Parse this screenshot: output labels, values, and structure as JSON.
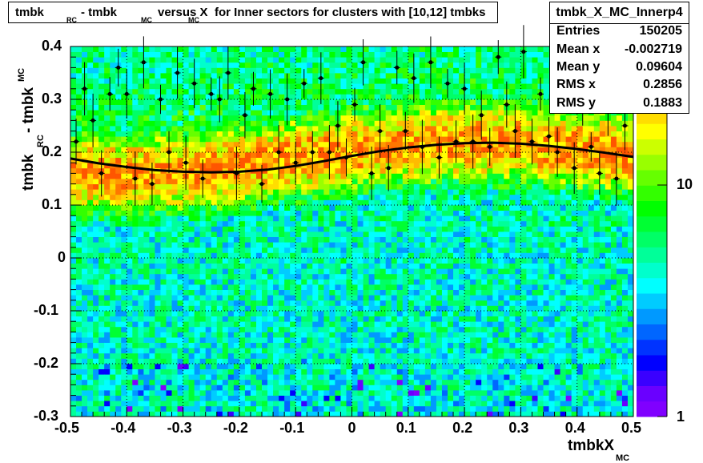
{
  "title": {
    "parts": [
      "tmbk",
      "RC",
      "- tmbk",
      "MC",
      "versus X",
      "MC",
      "for Inner sectors for clusters with [10,12] tmbks"
    ]
  },
  "stats": {
    "name": "tmbk_X_MC_Innerp4",
    "rows": [
      {
        "label": "Entries",
        "value": "150205"
      },
      {
        "label": "Mean x",
        "value": "-0.002719"
      },
      {
        "label": "Mean y",
        "value": "0.09604"
      },
      {
        "label": "RMS x",
        "value": "0.2856"
      },
      {
        "label": "RMS y",
        "value": "0.1883"
      }
    ]
  },
  "x_axis": {
    "title": "tmbkX",
    "title_sub": "MC",
    "ticks": [
      "-0.5",
      "-0.4",
      "-0.3",
      "-0.2",
      "-0.1",
      "0",
      "0.1",
      "0.2",
      "0.3",
      "0.4",
      "0.5"
    ]
  },
  "y_axis": {
    "title": "tmbk",
    "title_sub1": "RC",
    "title_mid": "- tmbk",
    "title_sub2": "MC",
    "ticks": [
      "-0.3",
      "-0.2",
      "-0.1",
      "0",
      "0.1",
      "0.2",
      "0.3",
      "0.4"
    ]
  },
  "palette": {
    "ticks": [
      "1",
      "10"
    ]
  },
  "chart_data": {
    "type": "heatmap",
    "x_range": [
      -0.5,
      0.5
    ],
    "y_range": [
      -0.3,
      0.4
    ],
    "z_scale": "log",
    "z_range": [
      1,
      30
    ],
    "grid": true,
    "profile_points": [
      {
        "x": -0.49,
        "y": 0.22
      },
      {
        "x": -0.475,
        "y": 0.32
      },
      {
        "x": -0.46,
        "y": 0.26
      },
      {
        "x": -0.445,
        "y": 0.16
      },
      {
        "x": -0.43,
        "y": 0.31
      },
      {
        "x": -0.415,
        "y": 0.36
      },
      {
        "x": -0.4,
        "y": 0.31
      },
      {
        "x": -0.385,
        "y": 0.15
      },
      {
        "x": -0.37,
        "y": 0.37
      },
      {
        "x": -0.355,
        "y": 0.14
      },
      {
        "x": -0.34,
        "y": 0.3
      },
      {
        "x": -0.325,
        "y": 0.2
      },
      {
        "x": -0.31,
        "y": 0.35
      },
      {
        "x": -0.295,
        "y": 0.18
      },
      {
        "x": -0.28,
        "y": 0.33
      },
      {
        "x": -0.265,
        "y": 0.15
      },
      {
        "x": -0.25,
        "y": 0.31
      },
      {
        "x": -0.235,
        "y": 0.3
      },
      {
        "x": -0.22,
        "y": 0.35
      },
      {
        "x": -0.205,
        "y": 0.16
      },
      {
        "x": -0.19,
        "y": 0.27
      },
      {
        "x": -0.175,
        "y": 0.32
      },
      {
        "x": -0.16,
        "y": 0.14
      },
      {
        "x": -0.145,
        "y": 0.31
      },
      {
        "x": -0.13,
        "y": 0.2
      },
      {
        "x": -0.115,
        "y": 0.3
      },
      {
        "x": -0.1,
        "y": 0.18
      },
      {
        "x": -0.085,
        "y": 0.33
      },
      {
        "x": -0.07,
        "y": 0.2
      },
      {
        "x": -0.055,
        "y": 0.34
      },
      {
        "x": -0.04,
        "y": 0.2
      },
      {
        "x": -0.025,
        "y": 0.25
      },
      {
        "x": -0.01,
        "y": 0.19
      },
      {
        "x": 0.005,
        "y": 0.29
      },
      {
        "x": 0.02,
        "y": 0.37
      },
      {
        "x": 0.035,
        "y": 0.16
      },
      {
        "x": 0.05,
        "y": 0.24
      },
      {
        "x": 0.065,
        "y": 0.17
      },
      {
        "x": 0.08,
        "y": 0.36
      },
      {
        "x": 0.095,
        "y": 0.24
      },
      {
        "x": 0.11,
        "y": 0.34
      },
      {
        "x": 0.125,
        "y": 0.21
      },
      {
        "x": 0.14,
        "y": 0.37
      },
      {
        "x": 0.155,
        "y": 0.19
      },
      {
        "x": 0.17,
        "y": 0.33
      },
      {
        "x": 0.185,
        "y": 0.22
      },
      {
        "x": 0.2,
        "y": 0.32
      },
      {
        "x": 0.215,
        "y": 0.22
      },
      {
        "x": 0.23,
        "y": 0.27
      },
      {
        "x": 0.245,
        "y": 0.21
      },
      {
        "x": 0.26,
        "y": 0.38
      },
      {
        "x": 0.275,
        "y": 0.29
      },
      {
        "x": 0.29,
        "y": 0.24
      },
      {
        "x": 0.305,
        "y": 0.39
      },
      {
        "x": 0.32,
        "y": 0.22
      },
      {
        "x": 0.335,
        "y": 0.31
      },
      {
        "x": 0.35,
        "y": 0.23
      },
      {
        "x": 0.365,
        "y": 0.2
      },
      {
        "x": 0.38,
        "y": 0.33
      },
      {
        "x": 0.395,
        "y": 0.17
      },
      {
        "x": 0.41,
        "y": 0.29
      },
      {
        "x": 0.425,
        "y": 0.21
      },
      {
        "x": 0.44,
        "y": 0.16
      },
      {
        "x": 0.455,
        "y": 0.28
      },
      {
        "x": 0.47,
        "y": 0.15
      },
      {
        "x": 0.485,
        "y": 0.25
      }
    ],
    "fit_curve": {
      "x": [
        -0.5,
        -0.45,
        -0.4,
        -0.35,
        -0.3,
        -0.25,
        -0.2,
        -0.15,
        -0.1,
        -0.05,
        0,
        0.05,
        0.1,
        0.15,
        0.2,
        0.25,
        0.3,
        0.35,
        0.4,
        0.45,
        0.5
      ],
      "y": [
        0.188,
        0.179,
        0.172,
        0.166,
        0.163,
        0.162,
        0.163,
        0.167,
        0.174,
        0.183,
        0.193,
        0.202,
        0.209,
        0.214,
        0.217,
        0.218,
        0.216,
        0.212,
        0.206,
        0.199,
        0.191
      ]
    }
  }
}
